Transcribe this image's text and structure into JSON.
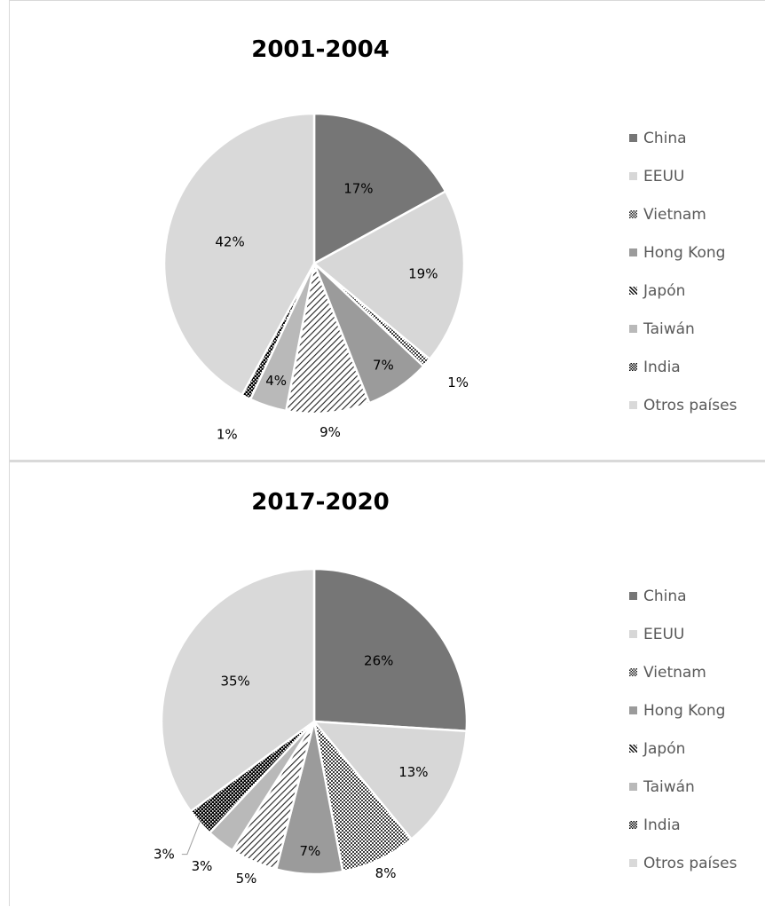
{
  "colors": {
    "China": "#767676",
    "EEUU": "#d7d7d7",
    "Vietnam": "#606060",
    "Hong Kong": "#9b9b9b",
    "Japón": "#ffffff",
    "Taiwán": "#b9b9b9",
    "India": "#111111",
    "Otros países": "#d9d9d9"
  },
  "chart_data": [
    {
      "type": "pie",
      "title": "2001-2004",
      "legend": "right",
      "legend_labels": [
        "China",
        "EEUU",
        "Vietnam",
        "Hong Kong",
        "Japón",
        "Taiwán",
        "India",
        "Otros países"
      ],
      "categories": [
        "China",
        "EEUU",
        "Vietnam",
        "Hong Kong",
        "Japón",
        "Taiwán",
        "India",
        "Otros países"
      ],
      "values": [
        17,
        19,
        1,
        7,
        9,
        4,
        1,
        42
      ],
      "labels": [
        "17%",
        "19%",
        "1%",
        "7%",
        "9%",
        "4%",
        "1%",
        "42%"
      ]
    },
    {
      "type": "pie",
      "title": "2017-2020",
      "legend": "right",
      "legend_labels": [
        "China",
        "EEUU",
        "Vietnam",
        "Hong Kong",
        "Japón",
        "Taiwán",
        "India",
        "Otros países"
      ],
      "categories": [
        "China",
        "EEUU",
        "Vietnam",
        "Hong Kong",
        "Japón",
        "Taiwán",
        "India",
        "Otros países"
      ],
      "values": [
        26,
        13,
        8,
        7,
        5,
        3,
        3,
        35
      ],
      "labels": [
        "26%",
        "13%",
        "8%",
        "7%",
        "5%",
        "3%",
        "3%",
        "35%"
      ]
    }
  ]
}
